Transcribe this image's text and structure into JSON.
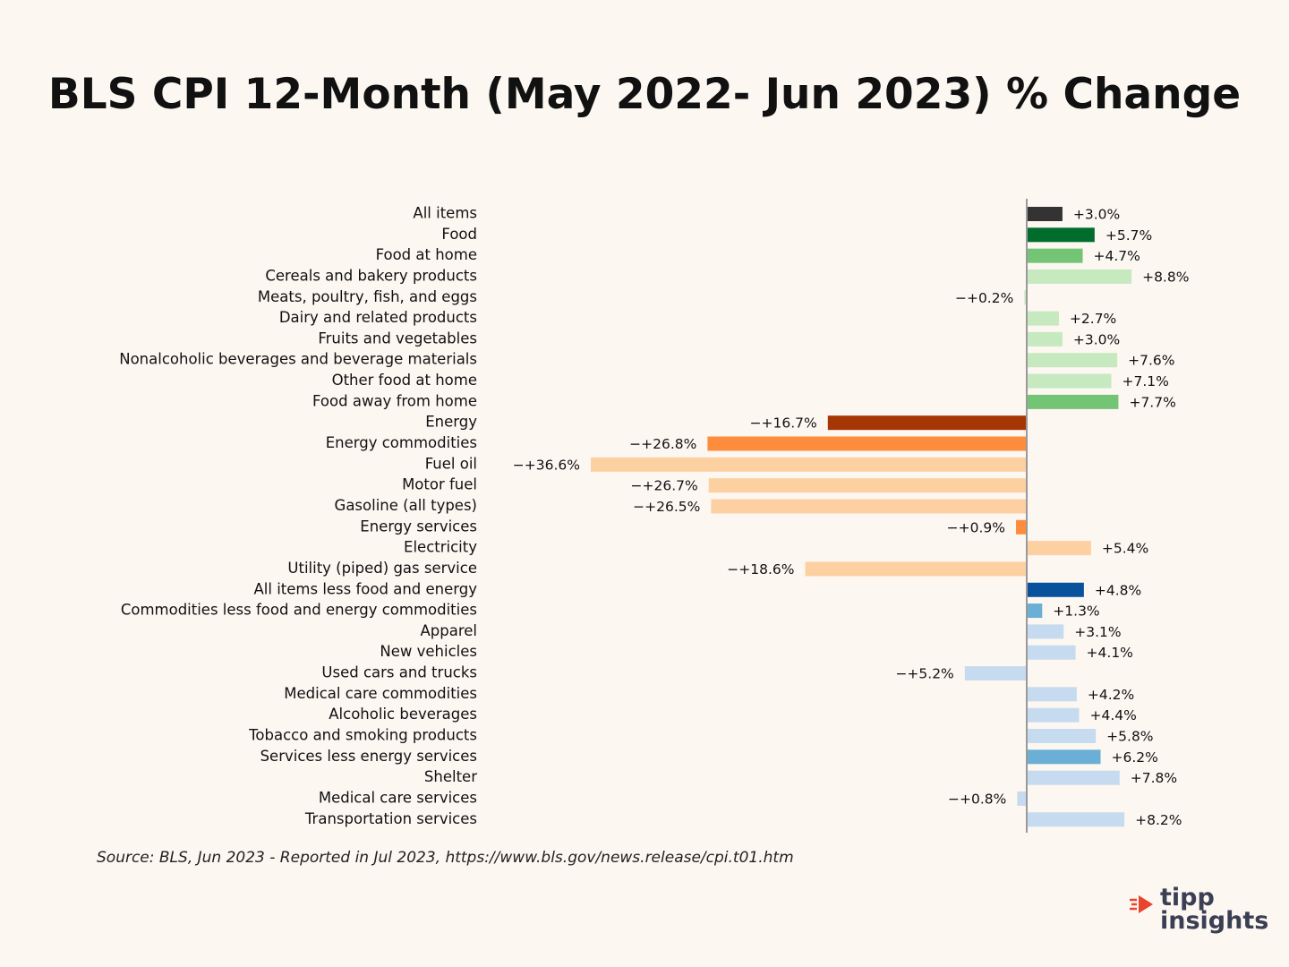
{
  "colors": {
    "background": "#fdf7f2",
    "all_items": "#333333",
    "food": "#006d2c",
    "food_mid": "#74c476",
    "food_light": "#c7e9c0",
    "energy_dark": "#a63603",
    "energy_mid": "#fd8d3c",
    "energy_light": "#fdd0a2",
    "core_dark": "#08519c",
    "core_mid": "#6baed6",
    "core_light": "#c6dbef",
    "logo_accent": "#e8442e",
    "logo_text": "#3b3f54"
  },
  "chart_data": {
    "type": "bar",
    "orientation": "horizontal",
    "title": "BLS CPI 12-Month (May 2022- Jun 2023) % Change",
    "xlabel": "",
    "ylabel": "",
    "xlim": [
      -36.6,
      8.8
    ],
    "grid": false,
    "categories": [
      "All items",
      "Food",
      "Food at home",
      "Cereals and bakery products",
      "Meats, poultry, fish, and eggs",
      "Dairy and related products",
      "Fruits and vegetables",
      "Nonalcoholic beverages and beverage materials",
      "Other food at home",
      "Food away from home",
      "Energy",
      "Energy commodities",
      "Fuel oil",
      "Motor fuel",
      "Gasoline (all types)",
      "Energy services",
      "Electricity",
      "Utility (piped) gas service",
      "All items less food and energy",
      "Commodities less food and energy commodities",
      "Apparel",
      "New vehicles",
      "Used cars and trucks",
      "Medical care commodities",
      "Alcoholic beverages",
      "Tobacco and smoking products",
      "Services less energy services",
      "Shelter",
      "Medical care services",
      "Transportation services"
    ],
    "values": [
      3.0,
      5.7,
      4.7,
      8.8,
      -0.2,
      2.7,
      3.0,
      7.6,
      7.1,
      7.7,
      -16.7,
      -26.8,
      -36.6,
      -26.7,
      -26.5,
      -0.9,
      5.4,
      -18.6,
      4.8,
      1.3,
      3.1,
      4.1,
      -5.2,
      4.2,
      4.4,
      5.8,
      6.2,
      7.8,
      -0.8,
      8.2
    ],
    "value_labels": [
      "+3.0%",
      "+5.7%",
      "+4.7%",
      "+8.8%",
      "−+0.2%",
      "+2.7%",
      "+3.0%",
      "+7.6%",
      "+7.1%",
      "+7.7%",
      "−+16.7%",
      "−+26.8%",
      "−+36.6%",
      "−+26.7%",
      "−+26.5%",
      "−+0.9%",
      "+5.4%",
      "−+18.6%",
      "+4.8%",
      "+1.3%",
      "+3.1%",
      "+4.1%",
      "−+5.2%",
      "+4.2%",
      "+4.4%",
      "+5.8%",
      "+6.2%",
      "+7.8%",
      "−+0.8%",
      "+8.2%"
    ],
    "bar_colors": [
      "#333333",
      "#006d2c",
      "#74c476",
      "#c7e9c0",
      "#c7e9c0",
      "#c7e9c0",
      "#c7e9c0",
      "#c7e9c0",
      "#c7e9c0",
      "#74c476",
      "#a63603",
      "#fd8d3c",
      "#fdd0a2",
      "#fdd0a2",
      "#fdd0a2",
      "#fd8d3c",
      "#fdd0a2",
      "#fdd0a2",
      "#08519c",
      "#6baed6",
      "#c6dbef",
      "#c6dbef",
      "#c6dbef",
      "#c6dbef",
      "#c6dbef",
      "#c6dbef",
      "#6baed6",
      "#c6dbef",
      "#c6dbef",
      "#c6dbef"
    ],
    "source": "Source:  BLS, Jun 2023 - Reported in Jul 2023, https://www.bls.gov/news.release/cpi.t01.htm"
  },
  "logo": {
    "line1": "tipp",
    "line2": "insights"
  }
}
